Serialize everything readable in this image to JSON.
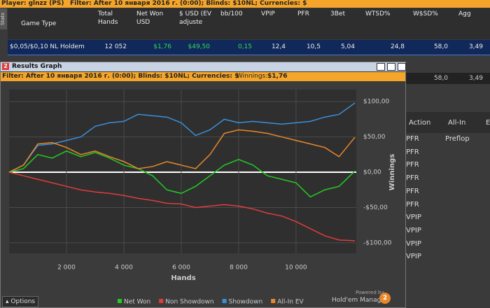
{
  "top_bar": {
    "player": "Player: glnzz (PS)",
    "filter": "Filter: After 10 января 2016 г. (0:00); Blinds: $10NL; Currencies: $"
  },
  "stats_tab": "Stats",
  "table": {
    "headers": [
      "Game Type",
      "Total Hands",
      "Net Won USD",
      "$ USD (EV adjuste",
      "bb/100",
      "VPIP",
      "PFR",
      "3Bet",
      "WTSD%",
      "W$SD%",
      "Agg"
    ],
    "rows": [
      [
        "$0,05/$0,10 NL Holdem",
        "12 052",
        "$1,76",
        "$49,50",
        "0,15",
        "12,4",
        "10,5",
        "5,04",
        "24,8",
        "58,0",
        "3,49"
      ]
    ]
  },
  "window": {
    "title": "Results Graph",
    "filter": "Filter: After 10 января 2016 г. (0:00); Blinds: $10NL; Currencies: $",
    "winnings_label": "Winnings:",
    "winnings": "$1,76",
    "options": "Options",
    "powered_by": "Powered by",
    "brand": "Hold'em Manager"
  },
  "side_panel": {
    "row": [
      "58,0",
      "3,49"
    ],
    "headers": [
      "Action",
      "All-In",
      "E"
    ],
    "rows": [
      [
        "PFR",
        "Preflop"
      ],
      [
        "PFR"
      ],
      [
        "PFR"
      ],
      [
        "PFR"
      ],
      [
        "PFR"
      ],
      [
        "PFR"
      ],
      [
        "VPIP"
      ],
      [
        "VPIP"
      ],
      [
        "VPIP"
      ],
      [
        "VPIP"
      ]
    ]
  },
  "chart_data": {
    "type": "line",
    "x_label": "Hands",
    "y_label": "Winnings",
    "x": [
      0,
      500,
      1000,
      1500,
      2000,
      2500,
      3000,
      3500,
      4000,
      4500,
      5000,
      5500,
      6000,
      6500,
      7000,
      7500,
      8000,
      8500,
      9000,
      9500,
      10000,
      10500,
      11000,
      11500,
      12052
    ],
    "series": [
      {
        "name": "Net Won",
        "color": "#22cc22",
        "values": [
          0,
          5,
          25,
          20,
          30,
          22,
          28,
          20,
          10,
          5,
          -5,
          -25,
          -30,
          -20,
          -5,
          10,
          18,
          10,
          -5,
          -10,
          -15,
          -35,
          -25,
          -20,
          1.76
        ]
      },
      {
        "name": "Non Showdown",
        "color": "#e03c3c",
        "values": [
          0,
          -5,
          -10,
          -15,
          -20,
          -25,
          -28,
          -30,
          -33,
          -37,
          -40,
          -44,
          -45,
          -50,
          -48,
          -46,
          -48,
          -52,
          -58,
          -62,
          -70,
          -80,
          -90,
          -96,
          -97
        ]
      },
      {
        "name": "Showdown",
        "color": "#3a8fd8",
        "values": [
          0,
          10,
          38,
          40,
          45,
          50,
          65,
          70,
          72,
          82,
          80,
          78,
          70,
          52,
          60,
          75,
          70,
          72,
          70,
          68,
          70,
          72,
          78,
          82,
          98
        ]
      },
      {
        "name": "All-In EV",
        "color": "#e8882a",
        "values": [
          0,
          10,
          40,
          42,
          35,
          25,
          30,
          22,
          15,
          5,
          8,
          15,
          10,
          5,
          25,
          55,
          60,
          58,
          55,
          50,
          45,
          40,
          35,
          22,
          49.5
        ]
      }
    ],
    "xlim": [
      0,
      12100
    ],
    "ylim": [
      -115,
      117
    ],
    "xticks": [
      {
        "value": 2000,
        "label": "2 000"
      },
      {
        "value": 4000,
        "label": "4 000"
      },
      {
        "value": 6000,
        "label": "6 000"
      },
      {
        "value": 8000,
        "label": "8 000"
      },
      {
        "value": 10000,
        "label": "10 000"
      }
    ],
    "yticks": [
      {
        "value": 100,
        "label": "$100,00"
      },
      {
        "value": 50,
        "label": "$50,00"
      },
      {
        "value": 0,
        "label": "$0,00"
      },
      {
        "value": -50,
        "label": "-$50,00"
      },
      {
        "value": -100,
        "label": "-$100,00"
      }
    ],
    "grid": true
  }
}
